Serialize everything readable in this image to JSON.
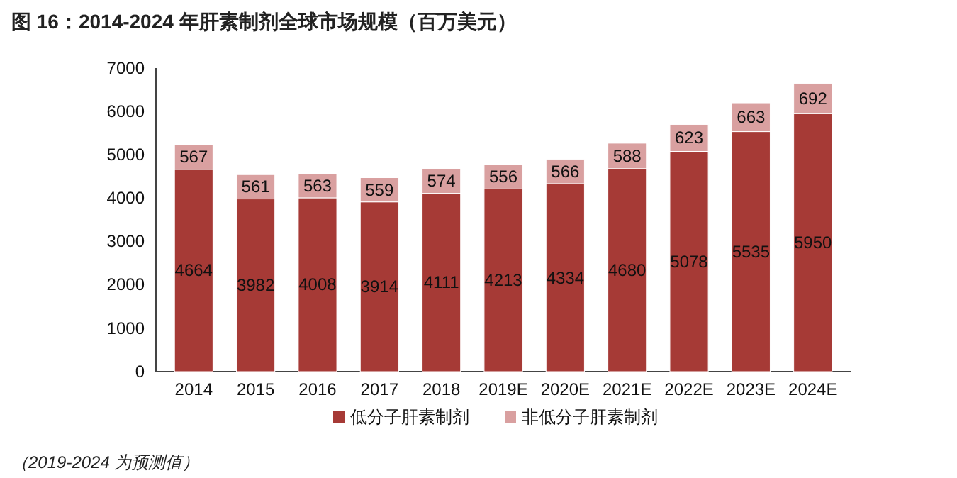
{
  "chart_data": {
    "type": "bar",
    "title": "图 16：2014-2024 年肝素制剂全球市场规模（百万美元）",
    "categories": [
      "2014",
      "2015",
      "2016",
      "2017",
      "2018",
      "2019E",
      "2020E",
      "2021E",
      "2022E",
      "2023E",
      "2024E"
    ],
    "series": [
      {
        "name": "低分子肝素制剂",
        "color": "#a63a36",
        "values": [
          4664,
          3982,
          4008,
          3914,
          4111,
          4213,
          4334,
          4680,
          5078,
          5535,
          5950
        ]
      },
      {
        "name": "非低分子肝素制剂",
        "color": "#d9a0a0",
        "values": [
          567,
          561,
          563,
          559,
          574,
          556,
          566,
          588,
          623,
          663,
          692
        ]
      }
    ],
    "stacked": true,
    "data_labels": true,
    "ylim": [
      0,
      7000
    ],
    "yticks": [
      0,
      1000,
      2000,
      3000,
      4000,
      5000,
      6000,
      7000
    ],
    "legend": "bottom",
    "annotations": [
      "（2019-2024 为预测值）"
    ]
  }
}
